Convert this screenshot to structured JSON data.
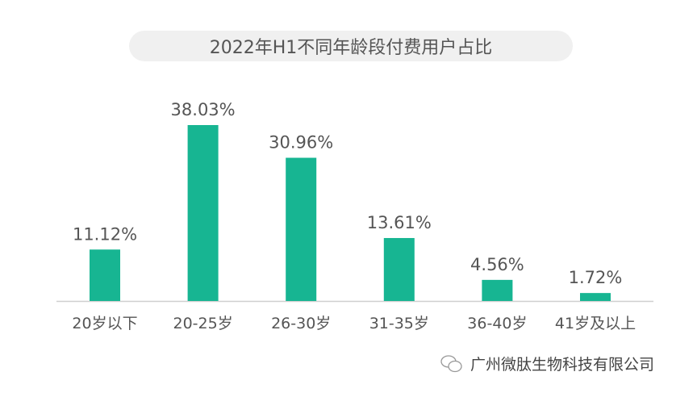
{
  "chart_data": {
    "type": "bar",
    "title": "2022年H1不同年龄段付费用户占比",
    "categories": [
      "20岁以下",
      "20-25岁",
      "26-30岁",
      "31-35岁",
      "36-40岁",
      "41岁及以上"
    ],
    "values": [
      11.12,
      38.03,
      30.96,
      13.61,
      4.56,
      1.72
    ],
    "data_labels": [
      "11.12%",
      "38.03%",
      "30.96%",
      "13.61%",
      "4.56%",
      "1.72%"
    ],
    "xlabel": "",
    "ylabel": "",
    "ylim": [
      0,
      40
    ],
    "grid": false,
    "bar_color": "#17b592"
  },
  "watermark": {
    "text": "广州微肽生物科技有限公司",
    "icon": "wechat-icon"
  }
}
